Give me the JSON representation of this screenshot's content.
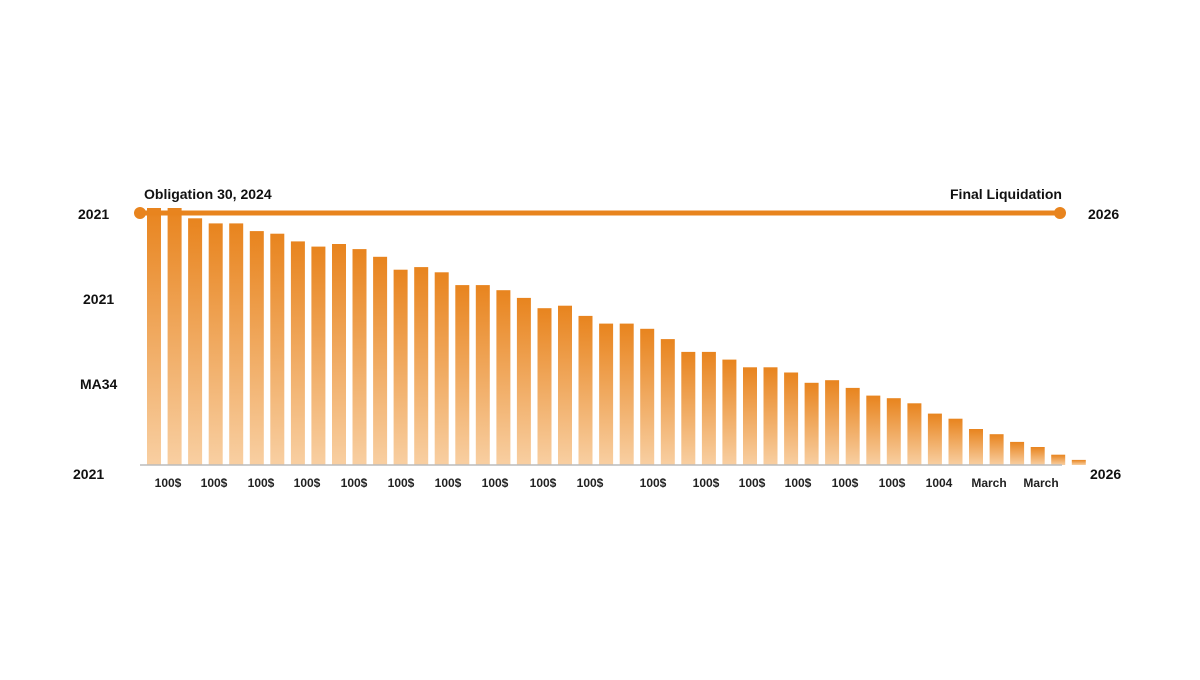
{
  "chart_data": {
    "type": "bar",
    "timeline": {
      "start_label": "Obligation 30, 2024",
      "end_label": "Final Liquidation",
      "left_year": "2021",
      "right_year": "2026"
    },
    "y_axis_labels": [
      "2021",
      "MA34",
      "2021"
    ],
    "right_bottom_label": "2026",
    "x_tick_labels": [
      "100$",
      "100$",
      "100$",
      "100$",
      "100$",
      "100$",
      "100$",
      "100$",
      "100$",
      "100$",
      "100$",
      "100$",
      "100$",
      "100$",
      "100$",
      "100$",
      "1004",
      "March",
      "March"
    ],
    "values": [
      100,
      100,
      96,
      94,
      94,
      91,
      90,
      87,
      85,
      86,
      84,
      81,
      76,
      77,
      75,
      70,
      70,
      68,
      65,
      61,
      62,
      58,
      55,
      55,
      53,
      49,
      44,
      44,
      41,
      38,
      38,
      36,
      32,
      33,
      30,
      27,
      26,
      24,
      20,
      18,
      14,
      12,
      9,
      7,
      4,
      2
    ],
    "ylim": [
      0,
      100
    ],
    "colors": {
      "bar_top": "#E8841E",
      "bar_bottom": "#F8CFA2",
      "timeline": "#E8841E",
      "axis": "#BBBBBB"
    }
  }
}
